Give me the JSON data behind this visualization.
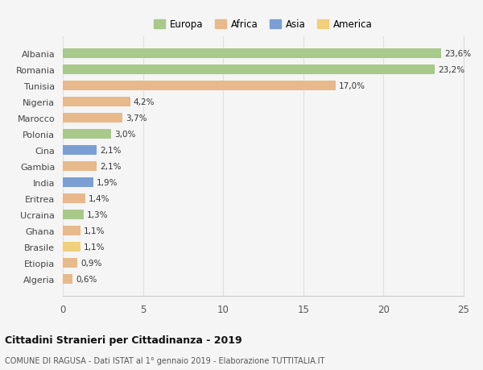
{
  "countries": [
    "Albania",
    "Romania",
    "Tunisia",
    "Nigeria",
    "Marocco",
    "Polonia",
    "Cina",
    "Gambia",
    "India",
    "Eritrea",
    "Ucraina",
    "Ghana",
    "Brasile",
    "Etiopia",
    "Algeria"
  ],
  "values": [
    23.6,
    23.2,
    17.0,
    4.2,
    3.7,
    3.0,
    2.1,
    2.1,
    1.9,
    1.4,
    1.3,
    1.1,
    1.1,
    0.9,
    0.6
  ],
  "labels": [
    "23,6%",
    "23,2%",
    "17,0%",
    "4,2%",
    "3,7%",
    "3,0%",
    "2,1%",
    "2,1%",
    "1,9%",
    "1,4%",
    "1,3%",
    "1,1%",
    "1,1%",
    "0,9%",
    "0,6%"
  ],
  "continents": [
    "Europa",
    "Europa",
    "Africa",
    "Africa",
    "Africa",
    "Europa",
    "Asia",
    "Africa",
    "Asia",
    "Africa",
    "Europa",
    "Africa",
    "America",
    "Africa",
    "Africa"
  ],
  "colors": {
    "Europa": "#a8c98a",
    "Africa": "#e8b98a",
    "Asia": "#7b9fd4",
    "America": "#f0d07a"
  },
  "legend_order": [
    "Europa",
    "Africa",
    "Asia",
    "America"
  ],
  "title": "Cittadini Stranieri per Cittadinanza - 2019",
  "subtitle": "COMUNE DI RAGUSA - Dati ISTAT al 1° gennaio 2019 - Elaborazione TUTTITALIA.IT",
  "xlim": [
    0,
    25
  ],
  "xticks": [
    0,
    5,
    10,
    15,
    20,
    25
  ],
  "background_color": "#f5f5f5",
  "grid_color": "#e0e0e0",
  "bar_height": 0.6
}
